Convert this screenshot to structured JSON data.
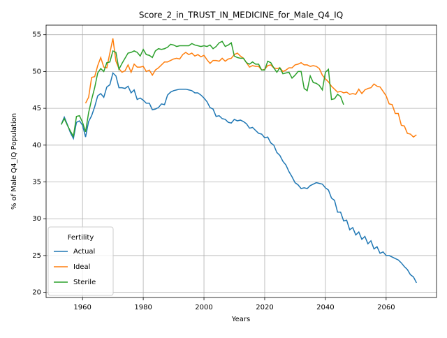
{
  "chart_data": {
    "type": "line",
    "title": "Score_2_in_TRUST_IN_MEDICINE_for_Male_Q4_IQ",
    "xlabel": "Years",
    "ylabel": "% of Male Q4_IQ Population",
    "legend_title": "Fertility",
    "legend": "lower left",
    "grid": true,
    "x": [
      1953,
      1954,
      1955,
      1956,
      1957,
      1958,
      1959,
      1960,
      1961,
      1962,
      1963,
      1964,
      1965,
      1966,
      1967,
      1968,
      1969,
      1970,
      1971,
      1972,
      1973,
      1974,
      1975,
      1976,
      1977,
      1978,
      1979,
      1980,
      1981,
      1982,
      1983,
      1984,
      1985,
      1986,
      1987,
      1988,
      1989,
      1990,
      1991,
      1992,
      1993,
      1994,
      1995,
      1996,
      1997,
      1998,
      1999,
      2000,
      2001,
      2002,
      2003,
      2004,
      2005,
      2006,
      2007,
      2008,
      2009,
      2010,
      2011,
      2012,
      2013,
      2014,
      2015,
      2016,
      2017,
      2018,
      2019,
      2020,
      2021,
      2022,
      2023,
      2024,
      2025,
      2026,
      2027,
      2028,
      2029,
      2030,
      2031,
      2032,
      2033,
      2034,
      2035,
      2036,
      2037,
      2038,
      2039,
      2040,
      2041,
      2042,
      2043,
      2044,
      2045,
      2046,
      2047,
      2048,
      2049,
      2050,
      2051,
      2052,
      2053,
      2054,
      2055,
      2056,
      2057,
      2058,
      2059,
      2060,
      2061,
      2062,
      2063,
      2064,
      2065,
      2066,
      2067,
      2068,
      2069,
      2070
    ],
    "series": [
      {
        "name": "Actual",
        "color": "#1f77b4",
        "values": [
          42.8,
          43.8,
          42.8,
          41.7,
          40.9,
          43.1,
          43.3,
          42.7,
          41.1,
          43.2,
          44.0,
          45.2,
          46.7,
          47.0,
          46.5,
          47.9,
          48.2,
          49.8,
          49.4,
          47.8,
          47.8,
          47.7,
          48.0,
          47.1,
          47.5,
          46.2,
          46.4,
          46.1,
          45.7,
          45.7,
          44.8,
          44.9,
          45.1,
          45.6,
          45.5,
          46.8,
          47.2,
          47.4,
          47.5,
          47.6,
          47.6,
          47.6,
          47.5,
          47.4,
          47.1,
          47.1,
          46.8,
          46.4,
          45.9,
          45.1,
          44.9,
          43.9,
          44.0,
          43.6,
          43.5,
          43.1,
          43.0,
          43.5,
          43.3,
          43.4,
          43.2,
          42.9,
          42.3,
          42.4,
          42.0,
          41.6,
          41.5,
          41.0,
          41.1,
          40.3,
          40.0,
          39.0,
          38.6,
          37.8,
          37.3,
          36.4,
          35.7,
          34.9,
          34.6,
          34.1,
          34.2,
          34.1,
          34.5,
          34.7,
          34.9,
          34.8,
          34.7,
          34.2,
          33.9,
          32.8,
          32.5,
          30.9,
          30.9,
          29.7,
          29.8,
          28.5,
          28.8,
          27.8,
          28.2,
          27.2,
          27.6,
          26.6,
          27.0,
          25.9,
          26.2,
          25.3,
          25.5,
          25.0,
          25.0,
          24.8,
          24.6,
          24.4,
          24.0,
          23.5,
          23.1,
          22.4,
          22.1,
          21.3
        ]
      },
      {
        "name": "Ideal",
        "color": "#ff7f0e",
        "values": [
          null,
          null,
          null,
          null,
          null,
          null,
          null,
          null,
          45.7,
          46.5,
          49.2,
          49.3,
          50.8,
          51.9,
          50.6,
          50.5,
          52.5,
          54.5,
          51.4,
          50.4,
          49.9,
          50.1,
          50.9,
          49.9,
          51.0,
          50.6,
          50.6,
          50.7,
          50.0,
          50.2,
          49.5,
          50.2,
          50.5,
          50.9,
          51.3,
          51.3,
          51.5,
          51.7,
          51.8,
          51.7,
          52.3,
          52.6,
          52.3,
          52.5,
          52.1,
          52.3,
          52.0,
          52.2,
          51.6,
          51.1,
          51.5,
          51.5,
          51.4,
          51.8,
          51.4,
          51.7,
          51.8,
          52.3,
          52.5,
          52.1,
          51.8,
          51.2,
          50.6,
          50.8,
          50.7,
          50.7,
          50.2,
          50.3,
          50.8,
          50.9,
          50.5,
          50.4,
          50.5,
          50.0,
          50.2,
          50.5,
          50.5,
          50.9,
          51.0,
          51.2,
          50.9,
          50.9,
          50.7,
          50.8,
          50.7,
          50.4,
          49.5,
          49.0,
          48.6,
          48.0,
          47.6,
          47.2,
          47.3,
          47.1,
          47.2,
          46.9,
          47.0,
          46.9,
          47.6,
          47.0,
          47.5,
          47.7,
          47.8,
          48.3,
          48.0,
          47.9,
          47.3,
          46.7,
          45.6,
          45.5,
          44.3,
          44.3,
          42.7,
          42.6,
          41.6,
          41.5,
          41.1,
          41.4
        ]
      },
      {
        "name": "Sterile",
        "color": "#2ca02c",
        "values": [
          42.8,
          43.6,
          42.7,
          41.9,
          41.2,
          43.9,
          44.0,
          43.1,
          41.8,
          44.4,
          46.2,
          47.8,
          49.8,
          50.4,
          50.0,
          51.2,
          51.3,
          52.8,
          52.6,
          50.3,
          51.1,
          51.8,
          52.5,
          52.6,
          52.8,
          52.6,
          52.1,
          53.0,
          52.3,
          52.2,
          51.9,
          52.8,
          53.1,
          53.0,
          53.1,
          53.3,
          53.7,
          53.6,
          53.4,
          53.5,
          53.5,
          53.5,
          53.5,
          53.8,
          53.6,
          53.5,
          53.4,
          53.5,
          53.4,
          53.6,
          53.1,
          53.4,
          53.9,
          54.1,
          53.4,
          53.6,
          53.9,
          52.1,
          51.9,
          51.8,
          51.8,
          51.2,
          51.0,
          51.3,
          51.0,
          51.0,
          50.2,
          50.2,
          51.4,
          51.2,
          50.5,
          49.9,
          50.5,
          49.7,
          49.8,
          49.9,
          49.1,
          49.5,
          50.0,
          50.0,
          47.7,
          47.4,
          49.4,
          48.5,
          48.4,
          48.1,
          47.5,
          49.9,
          50.3,
          46.2,
          46.3,
          46.9,
          46.6,
          45.5,
          null,
          null,
          null,
          null,
          null,
          null,
          null,
          null,
          null,
          null,
          null,
          null,
          null,
          null,
          null,
          null,
          null,
          null,
          null,
          null,
          null,
          null,
          null,
          null
        ]
      }
    ],
    "xlim": [
      1948,
      2076.6
    ],
    "ylim": [
      19.3,
      56.3
    ],
    "xticks": [
      1960,
      1980,
      2000,
      2020,
      2040,
      2060
    ],
    "yticks": [
      20,
      25,
      30,
      35,
      40,
      45,
      50,
      55
    ]
  }
}
